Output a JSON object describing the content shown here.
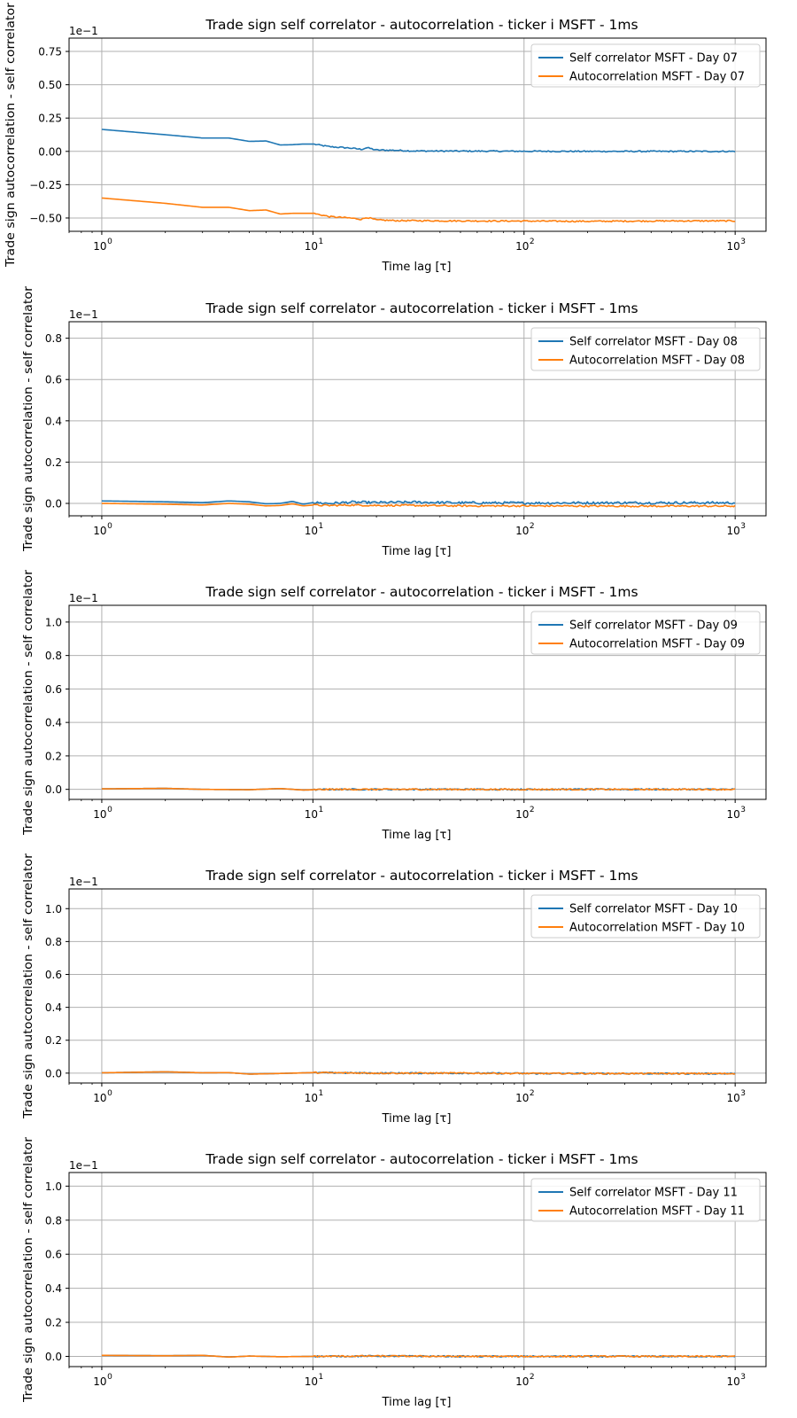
{
  "chart_data": [
    {
      "type": "line",
      "title": "Trade sign self correlator - autocorrelation - ticker i MSFT - 1ms",
      "xlabel": "Time lag [τ]",
      "ylabel": "Trade sign autocorrelation - self correlator",
      "xscale": "log",
      "xlim": [
        0.7,
        1400
      ],
      "xticks": [
        1,
        10,
        100,
        1000
      ],
      "xtick_labels": [
        "10",
        "10",
        "10",
        "10"
      ],
      "xtick_exponents": [
        "0",
        "1",
        "2",
        "3"
      ],
      "ylim": [
        -0.6,
        0.85
      ],
      "yticks": [
        -0.5,
        -0.25,
        0,
        0.25,
        0.5,
        0.75
      ],
      "ytick_labels": [
        "−0.50",
        "−0.25",
        "0.00",
        "0.25",
        "0.50",
        "0.75"
      ],
      "offset_text": "1e−1",
      "grid": true,
      "legend_position": "upper right",
      "series": [
        {
          "name": "Self correlator MSFT - Day 07",
          "color": "#1f77b4",
          "x": [
            1,
            2,
            3,
            4,
            5,
            6,
            7,
            8,
            9,
            10,
            12,
            15,
            17,
            18,
            20,
            25,
            30,
            50,
            100,
            200,
            500,
            1000
          ],
          "y": [
            0.165,
            0.125,
            0.1,
            0.1,
            0.075,
            0.078,
            0.048,
            0.05,
            0.055,
            0.055,
            0.035,
            0.025,
            0.015,
            0.028,
            0.01,
            0.008,
            0.003,
            0.002,
            0.001,
            0.0,
            0.0,
            0.0
          ],
          "noise": 0.005
        },
        {
          "name": "Autocorrelation MSFT - Day 07",
          "color": "#ff7f0e",
          "x": [
            1,
            2,
            3,
            4,
            5,
            6,
            7,
            8,
            9,
            10,
            12,
            15,
            17,
            18,
            20,
            25,
            30,
            50,
            100,
            200,
            500,
            1000
          ],
          "y": [
            -0.35,
            -0.39,
            -0.42,
            -0.42,
            -0.445,
            -0.44,
            -0.47,
            -0.465,
            -0.465,
            -0.465,
            -0.49,
            -0.5,
            -0.51,
            -0.495,
            -0.515,
            -0.52,
            -0.52,
            -0.522,
            -0.523,
            -0.525,
            -0.522,
            -0.522
          ],
          "noise": 0.005
        }
      ]
    },
    {
      "type": "line",
      "title": "Trade sign self correlator - autocorrelation - ticker i MSFT - 1ms",
      "xlabel": "Time lag [τ]",
      "ylabel": "Trade sign autocorrelation - self correlator",
      "xscale": "log",
      "xlim": [
        0.7,
        1400
      ],
      "xticks": [
        1,
        10,
        100,
        1000
      ],
      "xtick_labels": [
        "10",
        "10",
        "10",
        "10"
      ],
      "xtick_exponents": [
        "0",
        "1",
        "2",
        "3"
      ],
      "ylim": [
        -0.06,
        0.88
      ],
      "yticks": [
        0,
        0.2,
        0.4,
        0.6,
        0.8
      ],
      "ytick_labels": [
        "0.0",
        "0.2",
        "0.4",
        "0.6",
        "0.8"
      ],
      "offset_text": "1e−1",
      "grid": true,
      "legend_position": "upper right",
      "series": [
        {
          "name": "Self correlator MSFT - Day 08",
          "color": "#1f77b4",
          "x": [
            1,
            2,
            3,
            4,
            5,
            6,
            7,
            8,
            9,
            10,
            12,
            15,
            20,
            30,
            50,
            100,
            300,
            1000
          ],
          "y": [
            0.012,
            0.008,
            0.004,
            0.012,
            0.008,
            -0.002,
            0.0,
            0.01,
            -0.004,
            0.004,
            0.0,
            0.006,
            0.004,
            0.006,
            0.003,
            0.002,
            0.003,
            0.003
          ],
          "noise": 0.006
        },
        {
          "name": "Autocorrelation MSFT - Day 08",
          "color": "#ff7f0e",
          "x": [
            1,
            2,
            3,
            4,
            5,
            6,
            7,
            8,
            9,
            10,
            12,
            15,
            20,
            30,
            50,
            100,
            300,
            1000
          ],
          "y": [
            0.0,
            -0.004,
            -0.008,
            0.0,
            -0.004,
            -0.012,
            -0.01,
            -0.002,
            -0.012,
            -0.008,
            -0.01,
            -0.008,
            -0.01,
            -0.01,
            -0.012,
            -0.012,
            -0.013,
            -0.013
          ],
          "noise": 0.004
        }
      ]
    },
    {
      "type": "line",
      "title": "Trade sign self correlator - autocorrelation - ticker i MSFT - 1ms",
      "xlabel": "Time lag [τ]",
      "ylabel": "Trade sign autocorrelation - self correlator",
      "xscale": "log",
      "xlim": [
        0.7,
        1400
      ],
      "xticks": [
        1,
        10,
        100,
        1000
      ],
      "xtick_labels": [
        "10",
        "10",
        "10",
        "10"
      ],
      "xtick_exponents": [
        "0",
        "1",
        "2",
        "3"
      ],
      "ylim": [
        -0.06,
        1.1
      ],
      "yticks": [
        0,
        0.2,
        0.4,
        0.6,
        0.8,
        1.0
      ],
      "ytick_labels": [
        "0.0",
        "0.2",
        "0.4",
        "0.6",
        "0.8",
        "1.0"
      ],
      "offset_text": "1e−1",
      "grid": true,
      "legend_position": "upper right",
      "series": [
        {
          "name": "Self correlator MSFT - Day 09",
          "color": "#1f77b4",
          "x": [
            1,
            2,
            3,
            5,
            7,
            9,
            12,
            20,
            50,
            100,
            1000
          ],
          "y": [
            0.003,
            0.006,
            0.0,
            -0.002,
            0.005,
            -0.004,
            0.0,
            0.0,
            0.0,
            0.0,
            0.0
          ],
          "noise": 0.004
        },
        {
          "name": "Autocorrelation MSFT - Day 09",
          "color": "#ff7f0e",
          "x": [
            1,
            2,
            3,
            5,
            7,
            9,
            12,
            20,
            50,
            100,
            1000
          ],
          "y": [
            0.003,
            0.006,
            0.0,
            -0.002,
            0.005,
            -0.004,
            0.0,
            0.0,
            0.0,
            0.0,
            0.0
          ],
          "noise": 0.004
        }
      ]
    },
    {
      "type": "line",
      "title": "Trade sign self correlator - autocorrelation - ticker i MSFT - 1ms",
      "xlabel": "Time lag [τ]",
      "ylabel": "Trade sign autocorrelation - self correlator",
      "xscale": "log",
      "xlim": [
        0.7,
        1400
      ],
      "xticks": [
        1,
        10,
        100,
        1000
      ],
      "xtick_labels": [
        "10",
        "10",
        "10",
        "10"
      ],
      "xtick_exponents": [
        "0",
        "1",
        "2",
        "3"
      ],
      "ylim": [
        -0.06,
        1.12
      ],
      "yticks": [
        0,
        0.2,
        0.4,
        0.6,
        0.8,
        1.0
      ],
      "ytick_labels": [
        "0.0",
        "0.2",
        "0.4",
        "0.6",
        "0.8",
        "1.0"
      ],
      "offset_text": "1e−1",
      "grid": true,
      "legend_position": "upper right",
      "series": [
        {
          "name": "Self correlator MSFT - Day 10",
          "color": "#1f77b4",
          "x": [
            1,
            2,
            3,
            4,
            5,
            7,
            10,
            20,
            50,
            100,
            1000
          ],
          "y": [
            0.002,
            0.008,
            0.002,
            0.003,
            -0.006,
            -0.002,
            0.003,
            0.0,
            0.0,
            -0.002,
            -0.003
          ],
          "noise": 0.004
        },
        {
          "name": "Autocorrelation MSFT - Day 10",
          "color": "#ff7f0e",
          "x": [
            1,
            2,
            3,
            4,
            5,
            7,
            10,
            20,
            50,
            100,
            1000
          ],
          "y": [
            0.002,
            0.008,
            0.002,
            0.003,
            -0.006,
            -0.002,
            0.003,
            0.0,
            0.0,
            -0.002,
            -0.003
          ],
          "noise": 0.004
        }
      ]
    },
    {
      "type": "line",
      "title": "Trade sign self correlator - autocorrelation - ticker i MSFT - 1ms",
      "xlabel": "Time lag [τ]",
      "ylabel": "Trade sign autocorrelation - self correlator",
      "xscale": "log",
      "xlim": [
        0.7,
        1400
      ],
      "xticks": [
        1,
        10,
        100,
        1000
      ],
      "xtick_labels": [
        "10",
        "10",
        "10",
        "10"
      ],
      "xtick_exponents": [
        "0",
        "1",
        "2",
        "3"
      ],
      "ylim": [
        -0.06,
        1.08
      ],
      "yticks": [
        0,
        0.2,
        0.4,
        0.6,
        0.8,
        1.0
      ],
      "ytick_labels": [
        "0.0",
        "0.2",
        "0.4",
        "0.6",
        "0.8",
        "1.0"
      ],
      "offset_text": "1e−1",
      "grid": true,
      "legend_position": "upper right",
      "series": [
        {
          "name": "Self correlator MSFT - Day 11",
          "color": "#1f77b4",
          "x": [
            1,
            2,
            3,
            4,
            5,
            7,
            10,
            20,
            50,
            100,
            1000
          ],
          "y": [
            0.006,
            0.004,
            0.006,
            -0.004,
            0.002,
            -0.002,
            0.0,
            0.002,
            0.0,
            0.0,
            0.0
          ],
          "noise": 0.004
        },
        {
          "name": "Autocorrelation MSFT - Day 11",
          "color": "#ff7f0e",
          "x": [
            1,
            2,
            3,
            4,
            5,
            7,
            10,
            20,
            50,
            100,
            1000
          ],
          "y": [
            0.006,
            0.004,
            0.006,
            -0.004,
            0.002,
            -0.002,
            0.0,
            0.002,
            0.0,
            0.0,
            0.0
          ],
          "noise": 0.004
        }
      ]
    }
  ]
}
